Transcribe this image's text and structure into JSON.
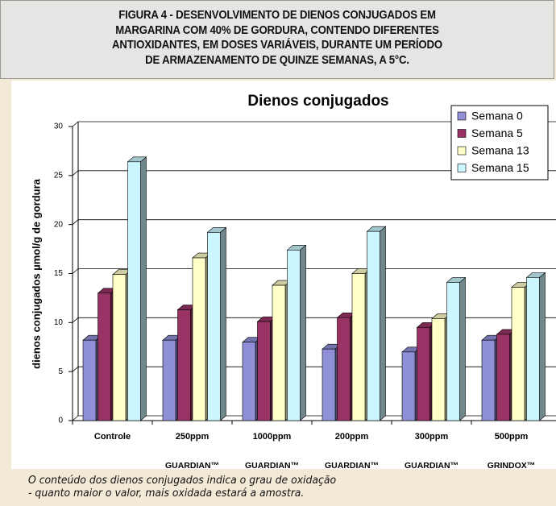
{
  "header": {
    "title_lines": [
      "FIGURA 4 - DESENVOLVIMENTO DE DIENOS CONJUGADOS EM",
      "MARGARINA COM 40% DE GORDURA, CONTENDO DIFERENTES",
      "ANTIOXIDANTES, EM DOSES VARIÁVEIS, DURANTE UM PERÍODO",
      "DE ARMAZENAMENTO DE QUINZE SEMANAS, A 5°C."
    ]
  },
  "chart_data": {
    "type": "bar3d",
    "title": "Dienos conjugados",
    "y_label": "dienos conjugados µmol/g de gordura",
    "categories": [
      "Controle",
      "250ppm",
      "1000ppm",
      "200ppm",
      "300ppm",
      "500ppm"
    ],
    "category_sublabels": [
      null,
      "GUARDIAN™",
      "GUARDIAN™",
      "GUARDIAN™",
      "GUARDIAN™",
      "GRINDOX™"
    ],
    "series": [
      {
        "name": "Semana 0",
        "color": "#9090d8",
        "values": [
          8.2,
          8.2,
          8.0,
          7.3,
          7.0,
          8.2
        ]
      },
      {
        "name": "Semana 5",
        "color": "#993366",
        "values": [
          13.0,
          11.3,
          10.1,
          10.5,
          9.5,
          8.8
        ]
      },
      {
        "name": "Semana 13",
        "color": "#ffffc8",
        "values": [
          14.9,
          16.6,
          13.8,
          15.0,
          10.4,
          13.6
        ]
      },
      {
        "name": "Semana 15",
        "color": "#ccf6ff",
        "values": [
          26.4,
          19.2,
          17.4,
          19.3,
          14.1,
          14.6
        ]
      }
    ],
    "ylim": [
      0,
      30
    ],
    "yticks": [
      0,
      5,
      10,
      15,
      20,
      25,
      30
    ],
    "grid": true,
    "legend": "top-right"
  },
  "caption": {
    "lines": [
      "O conteúdo dos dienos conjugados indica o grau de oxidação",
      "- quanto maior o valor, mais oxidada estará a amostra."
    ]
  }
}
